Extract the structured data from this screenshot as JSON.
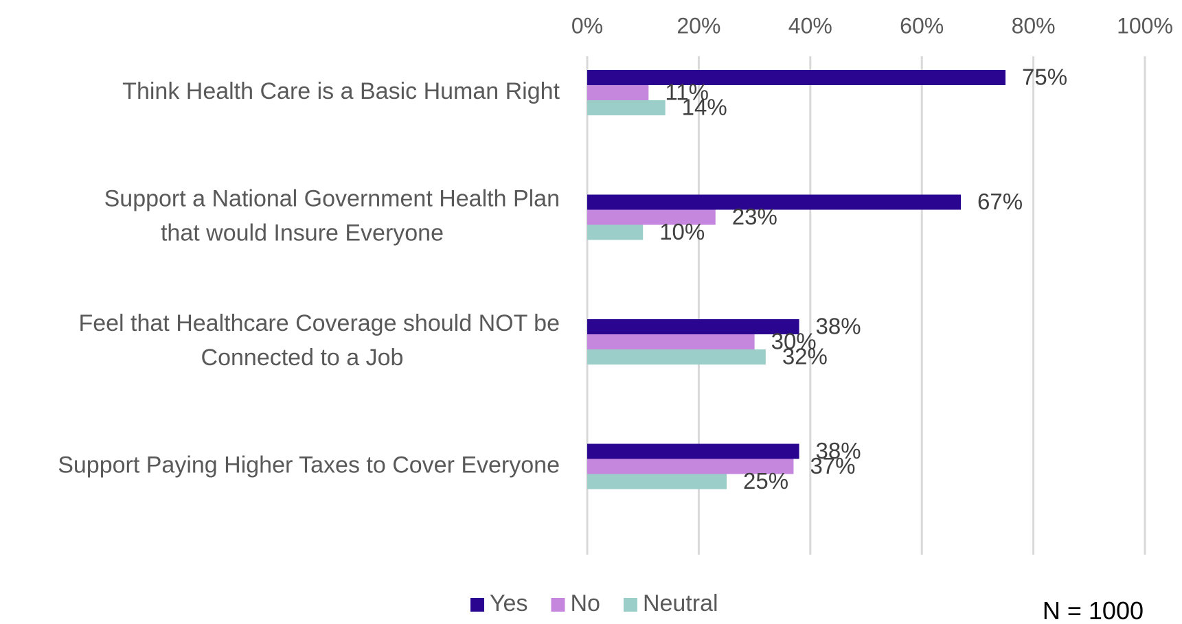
{
  "chart_data": {
    "type": "bar",
    "orientation": "horizontal",
    "categories": [
      [
        "Think Health Care is a Basic Human Right"
      ],
      [
        "Support a National Government Health Plan",
        "that would Insure Everyone"
      ],
      [
        "Feel that Healthcare Coverage should NOT be",
        "Connected to a Job"
      ],
      [
        "Support Paying Higher Taxes to Cover Everyone"
      ]
    ],
    "series": [
      {
        "name": "Yes",
        "color": "#2a0590",
        "values": [
          75,
          67,
          38,
          38
        ]
      },
      {
        "name": "No",
        "color": "#c586de",
        "values": [
          11,
          23,
          30,
          37
        ]
      },
      {
        "name": "Neutral",
        "color": "#9ccec9",
        "values": [
          14,
          10,
          32,
          25
        ]
      }
    ],
    "xlim": [
      0,
      100
    ],
    "xticks": [
      0,
      20,
      40,
      60,
      80,
      100
    ],
    "tick_suffix": "%",
    "grid": true,
    "axis_position": "top",
    "legend_position": "bottom"
  },
  "note": "N = 1000"
}
